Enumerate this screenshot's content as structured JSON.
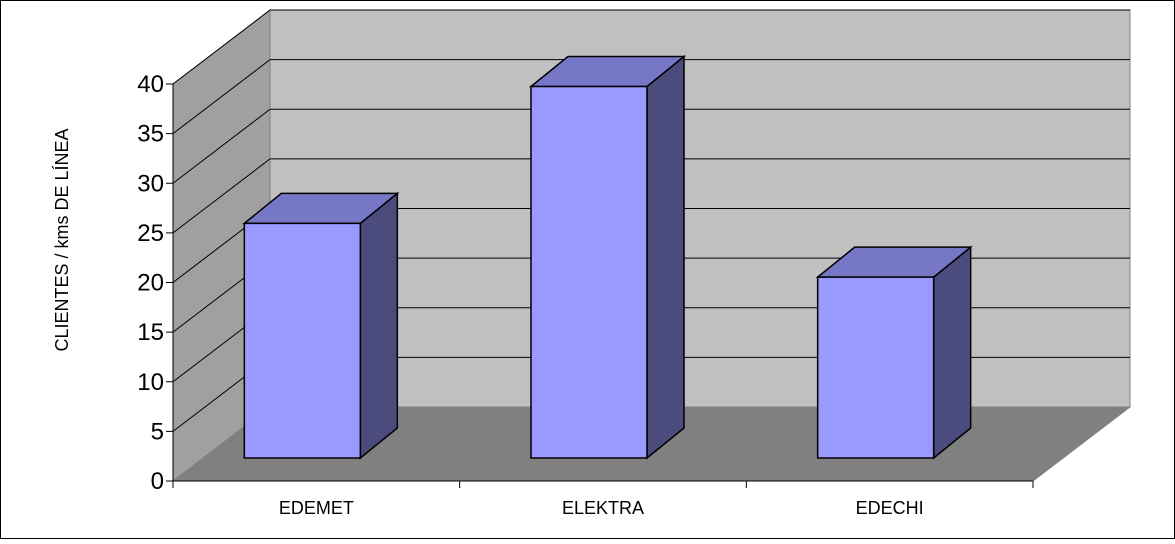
{
  "chart_data": {
    "type": "bar",
    "title": "",
    "xlabel": "",
    "ylabel": "CLIENTES / kms DE LÍNEA",
    "categories": [
      "EDEMET",
      "ELEKTRA",
      "EDECHI"
    ],
    "values": [
      24,
      38,
      18.5
    ],
    "ylim": [
      0,
      40
    ],
    "yticks": [
      0,
      5,
      10,
      15,
      20,
      25,
      30,
      35,
      40
    ],
    "grid": true,
    "legend": "none",
    "three_d": true,
    "colors": {
      "bar_front": "#9999FF",
      "bar_top": "#7777C8",
      "bar_side": "#4B4B7E",
      "back_wall": "#C0C0C0",
      "floor": "#808080",
      "side_wall": "#A0A0A0",
      "outline": "#000000"
    }
  }
}
